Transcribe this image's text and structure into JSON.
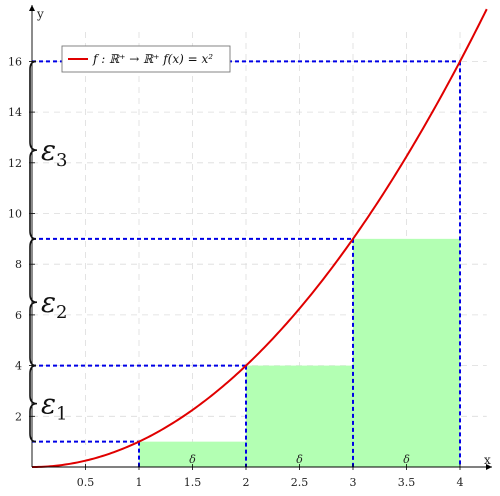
{
  "chart_data": {
    "type": "line",
    "xlabel": "x",
    "ylabel": "y",
    "xlim": [
      0,
      4.25
    ],
    "ylim": [
      0,
      17.3
    ],
    "grid": true,
    "x_ticks": [
      0.5,
      1,
      1.5,
      2,
      2.5,
      3,
      3.5,
      4
    ],
    "y_ticks": [
      2,
      4,
      6,
      8,
      10,
      12,
      14,
      16
    ],
    "legend": {
      "position": "top-left",
      "text": "f : ℝ⁺ → ℝ⁺    f(x) = x²"
    },
    "series": [
      {
        "function": "x^2",
        "x_range": [
          0,
          4.25
        ],
        "color": "#e00000"
      }
    ],
    "bars": [
      {
        "x_start": 1,
        "x_end": 2,
        "height": 1,
        "label": "δ"
      },
      {
        "x_start": 2,
        "x_end": 3,
        "height": 4,
        "label": "δ"
      },
      {
        "x_start": 3,
        "x_end": 4,
        "height": 9,
        "label": "δ"
      }
    ],
    "dashed_guides": [
      {
        "x": 1,
        "y": 1
      },
      {
        "x": 2,
        "y": 4
      },
      {
        "x": 3,
        "y": 9
      },
      {
        "x": 4,
        "y": 16
      }
    ],
    "braces": [
      {
        "from": 1,
        "to": 4,
        "label": "ε",
        "subscript": "1"
      },
      {
        "from": 4,
        "to": 9,
        "label": "ε",
        "subscript": "2"
      },
      {
        "from": 9,
        "to": 16,
        "label": "ε",
        "subscript": "3"
      }
    ],
    "colors": {
      "curve": "#e00000",
      "bar_fill": "#b3ffb3",
      "guides": "#0000e6",
      "axes": "#000000",
      "grid": "#dcdcdc"
    }
  }
}
